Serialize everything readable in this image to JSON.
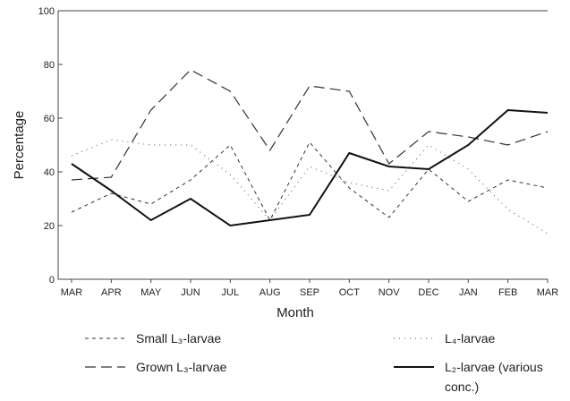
{
  "chart_data": {
    "type": "line",
    "x_label": "Month",
    "y_label": "Percentage",
    "categories": [
      "MAR",
      "APR",
      "MAY",
      "JUN",
      "JUL",
      "AUG",
      "SEP",
      "OCT",
      "NOV",
      "DEC",
      "JAN",
      "FEB",
      "MAR"
    ],
    "series": [
      {
        "name": "Small L₃-larvae",
        "color": "#333333",
        "dash": "short",
        "values": [
          25,
          32,
          28,
          37,
          50,
          22,
          51,
          34,
          23,
          41,
          29,
          37,
          34
        ]
      },
      {
        "name": "L₄-larvae",
        "color": "#555555",
        "dash": "dotted",
        "values": [
          46,
          52,
          50,
          50,
          39,
          22,
          42,
          36,
          33,
          50,
          41,
          26,
          17
        ]
      },
      {
        "name": "Grown L₃-larvae",
        "color": "#333333",
        "dash": "long",
        "values": [
          37,
          38,
          63,
          78,
          70,
          48,
          72,
          70,
          43,
          55,
          53,
          50,
          55
        ]
      },
      {
        "name": "L₂-larvae (various conc.)",
        "color": "#111111",
        "dash": "solid",
        "values": [
          43,
          33,
          22,
          30,
          20,
          22,
          24,
          47,
          42,
          41,
          50,
          63,
          62
        ]
      }
    ],
    "ylim": [
      0,
      100
    ],
    "yticks": [
      0,
      20,
      40,
      60,
      80,
      100
    ],
    "grid": false
  }
}
